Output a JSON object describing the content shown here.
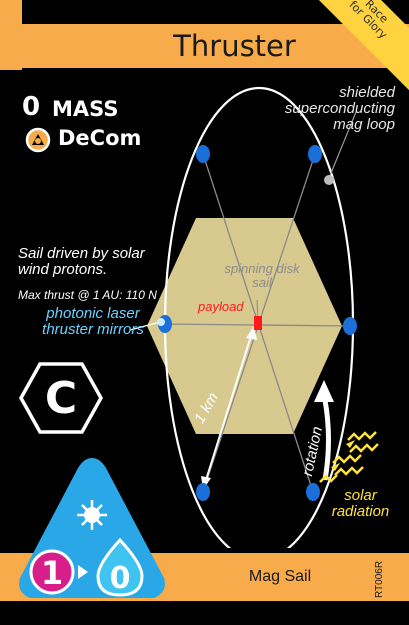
{
  "card": {
    "title": "Thruster",
    "name": "Mag Sail",
    "code": "RT006R",
    "corner_banner": "Race\nfor Glory"
  },
  "stats": {
    "mass_value": "0",
    "mass_label": "MASS",
    "decom_label": "DeCom"
  },
  "labels": {
    "sail_description": "Sail driven by solar wind protons.",
    "max_thrust": "Max thrust @ 1 AU: 110 N",
    "mirrors": "photonic laser thruster mirrors",
    "mag_loop": "shielded superconducting mag loop",
    "disk_sail": "spinning disk sail",
    "payload": "payload",
    "solar_radiation": "solar radiation",
    "distance": "1 km",
    "rotation": "rotation"
  },
  "badges": {
    "spectral_type": "C",
    "support_from": "1",
    "support_to": "0"
  },
  "colors": {
    "header": "#f7ab4a",
    "corner_banner": "#ffd23f",
    "mirrors_text": "#6ad3ff",
    "solar_text": "#ffe23a",
    "payload_text": "#ff1a1a",
    "hexagon_fill": "#d8c98f",
    "node": "#1a6fd8",
    "support_triangle": "#2aa7e6",
    "support_from": "#d81e8a"
  }
}
